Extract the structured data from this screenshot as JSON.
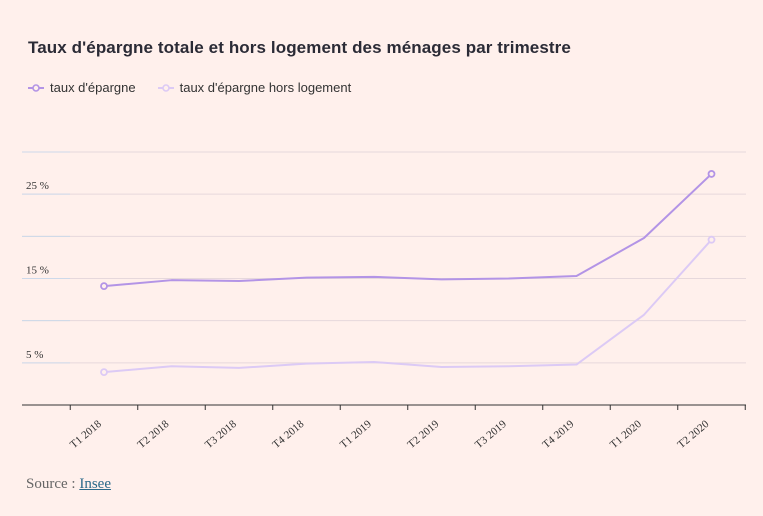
{
  "title": "Taux d'épargne totale et hors logement des ménages par trimestre",
  "legend": [
    {
      "label": "taux d'épargne",
      "color": "#b394e6"
    },
    {
      "label": "taux d'épargne hors logement",
      "color": "#dccaf5"
    }
  ],
  "source": {
    "label": "Source :",
    "link": "Insee"
  },
  "chart_data": {
    "type": "line",
    "categories": [
      "T1 2018",
      "T2 2018",
      "T3 2018",
      "T4 2018",
      "T1 2019",
      "T2 2019",
      "T3 2019",
      "T4 2019",
      "T1 2020",
      "T2 2020"
    ],
    "series": [
      {
        "name": "taux d'épargne",
        "color": "#b394e6",
        "values": [
          14.1,
          14.8,
          14.7,
          15.1,
          15.2,
          14.9,
          15.0,
          15.3,
          19.8,
          27.4
        ]
      },
      {
        "name": "taux d'épargne hors logement",
        "color": "#dccaf5",
        "values": [
          3.9,
          4.6,
          4.4,
          4.9,
          5.1,
          4.5,
          4.6,
          4.8,
          10.7,
          19.6
        ]
      }
    ],
    "ylim": [
      0,
      30
    ],
    "yticks": [
      {
        "value": 25,
        "label": "25 %"
      },
      {
        "value": 15,
        "label": "15 %"
      },
      {
        "value": 5,
        "label": "5 %"
      }
    ],
    "gridlines": [
      30,
      25,
      20,
      15,
      10,
      5
    ],
    "xlabel": "",
    "ylabel": "",
    "grid": true,
    "legend_position": "top-left"
  }
}
